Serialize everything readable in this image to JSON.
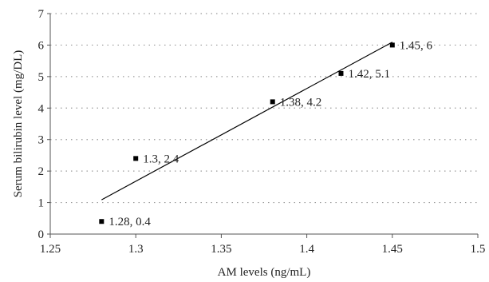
{
  "chart_data": {
    "type": "scatter",
    "title": "",
    "xlabel": "AM levels (ng/mL)",
    "ylabel": "Serum bilirubin level (mg/DL)",
    "xlim": [
      1.25,
      1.5
    ],
    "ylim": [
      0,
      7
    ],
    "x_ticks": [
      "1.25",
      "1.3",
      "1.35",
      "1.4",
      "1.45",
      "1.5"
    ],
    "y_ticks": [
      "0",
      "1",
      "2",
      "3",
      "4",
      "5",
      "6",
      "7"
    ],
    "grid": "horizontal dotted",
    "legend": "none",
    "marker_color": "#000000",
    "series": [
      {
        "points": [
          {
            "x": 1.28,
            "y": 0.4,
            "label": "1.28, 0.4"
          },
          {
            "x": 1.3,
            "y": 2.4,
            "label": "1.3, 2.4"
          },
          {
            "x": 1.38,
            "y": 4.2,
            "label": "1.38, 4.2"
          },
          {
            "x": 1.42,
            "y": 5.1,
            "label": "1.42, 5.1"
          },
          {
            "x": 1.45,
            "y": 6,
            "label": "1.45, 6"
          }
        ]
      }
    ],
    "trendline": {
      "type": "linear",
      "x_range": [
        1.28,
        1.45
      ]
    }
  }
}
